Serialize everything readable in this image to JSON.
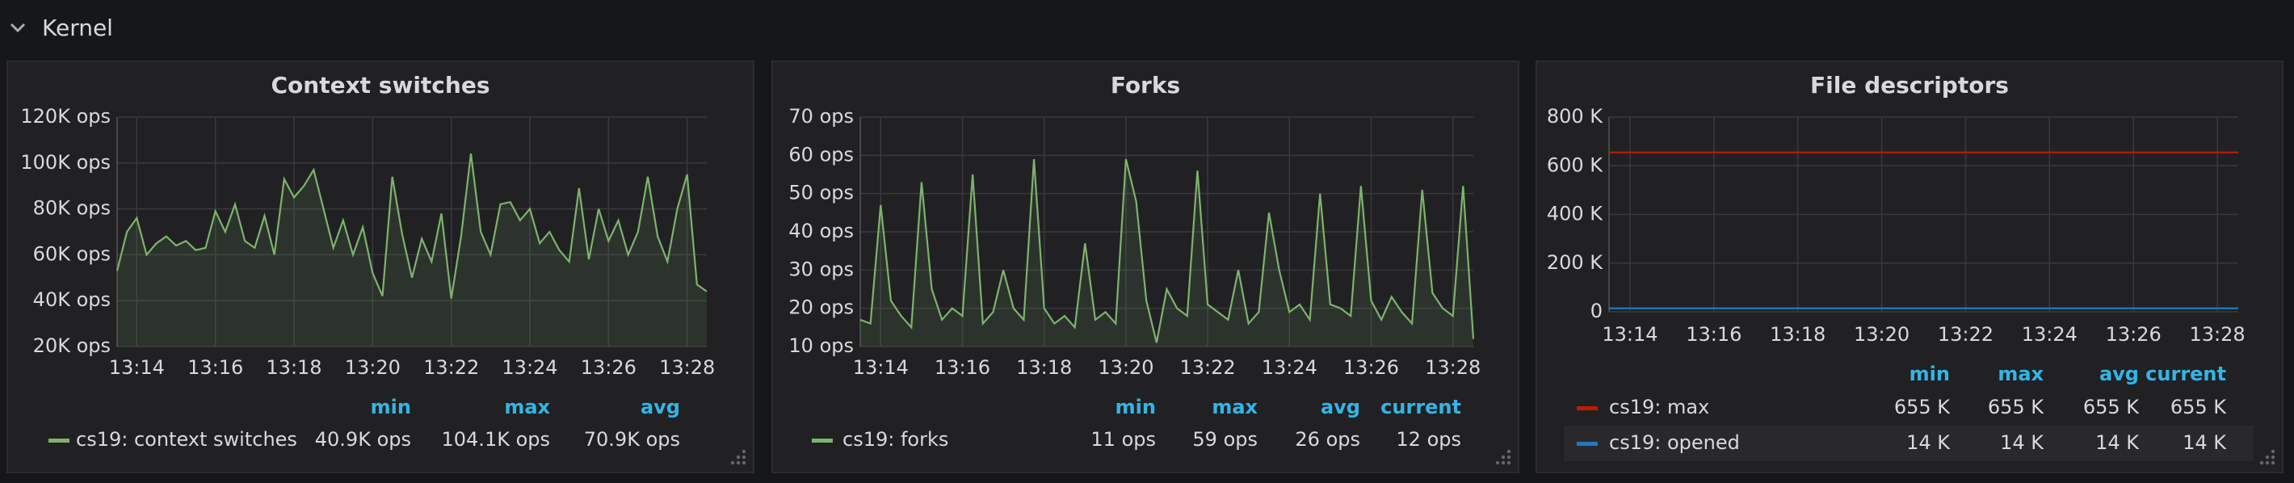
{
  "row": {
    "title": "Kernel"
  },
  "chart_data": [
    {
      "type": "line",
      "title": "Context switches",
      "fill": true,
      "grid": true,
      "categories": [
        null,
        null,
        "13:14",
        null,
        null,
        null,
        null,
        null,
        null,
        null,
        "13:16",
        null,
        null,
        null,
        null,
        null,
        null,
        null,
        "13:18",
        null,
        null,
        null,
        null,
        null,
        null,
        null,
        "13:20",
        null,
        null,
        null,
        null,
        null,
        null,
        null,
        "13:22",
        null,
        null,
        null,
        null,
        null,
        null,
        null,
        "13:24",
        null,
        null,
        null,
        null,
        null,
        null,
        null,
        "13:26",
        null,
        null,
        null,
        null,
        null,
        null,
        null,
        "13:28",
        null,
        null
      ],
      "ylim": [
        20000,
        120000
      ],
      "yticks": [
        {
          "value": 20000,
          "label": "20K ops"
        },
        {
          "value": 40000,
          "label": "40K ops"
        },
        {
          "value": 60000,
          "label": "60K ops"
        },
        {
          "value": 80000,
          "label": "80K ops"
        },
        {
          "value": 100000,
          "label": "100K ops"
        },
        {
          "value": 120000,
          "label": "120K ops"
        }
      ],
      "legend_columns": [
        "min",
        "max",
        "avg"
      ],
      "series": [
        {
          "name": "cs19: context switches",
          "color": "#7eb26d",
          "legend_values": [
            "40.9K ops",
            "104.1K ops",
            "70.9K ops"
          ],
          "values": [
            53000,
            70000,
            76000,
            60000,
            65000,
            68000,
            64000,
            66000,
            62000,
            63000,
            79000,
            70000,
            82000,
            66000,
            63000,
            77000,
            60000,
            93000,
            85000,
            90000,
            97000,
            80000,
            63000,
            75000,
            60000,
            72000,
            52000,
            42000,
            94000,
            69000,
            50000,
            67000,
            57000,
            78000,
            40900,
            68000,
            104100,
            70000,
            60000,
            82000,
            83000,
            75000,
            80000,
            65000,
            70000,
            62000,
            57000,
            89000,
            58000,
            80000,
            66000,
            75000,
            60000,
            70000,
            94000,
            68000,
            57000,
            80000,
            95000,
            47000,
            44000
          ]
        }
      ]
    },
    {
      "type": "line",
      "title": "Forks",
      "fill": true,
      "grid": true,
      "categories": [
        null,
        null,
        "13:14",
        null,
        null,
        null,
        null,
        null,
        null,
        null,
        "13:16",
        null,
        null,
        null,
        null,
        null,
        null,
        null,
        "13:18",
        null,
        null,
        null,
        null,
        null,
        null,
        null,
        "13:20",
        null,
        null,
        null,
        null,
        null,
        null,
        null,
        "13:22",
        null,
        null,
        null,
        null,
        null,
        null,
        null,
        "13:24",
        null,
        null,
        null,
        null,
        null,
        null,
        null,
        "13:26",
        null,
        null,
        null,
        null,
        null,
        null,
        null,
        "13:28",
        null,
        null
      ],
      "ylim": [
        10,
        70
      ],
      "yticks": [
        {
          "value": 10,
          "label": "10 ops"
        },
        {
          "value": 20,
          "label": "20 ops"
        },
        {
          "value": 30,
          "label": "30 ops"
        },
        {
          "value": 40,
          "label": "40 ops"
        },
        {
          "value": 50,
          "label": "50 ops"
        },
        {
          "value": 60,
          "label": "60 ops"
        },
        {
          "value": 70,
          "label": "70 ops"
        }
      ],
      "legend_columns": [
        "min",
        "max",
        "avg",
        "current"
      ],
      "series": [
        {
          "name": "cs19: forks",
          "color": "#7eb26d",
          "legend_values": [
            "11 ops",
            "59 ops",
            "26 ops",
            "12 ops"
          ],
          "values": [
            17,
            16,
            47,
            22,
            18,
            15,
            53,
            25,
            17,
            20,
            18,
            55,
            16,
            19,
            30,
            20,
            17,
            59,
            20,
            16,
            18,
            15,
            37,
            17,
            19,
            16,
            59,
            48,
            22,
            11,
            25,
            20,
            18,
            56,
            21,
            19,
            17,
            30,
            16,
            19,
            45,
            30,
            19,
            21,
            17,
            50,
            21,
            20,
            18,
            52,
            22,
            17,
            23,
            19,
            16,
            51,
            24,
            20,
            18,
            52,
            12
          ]
        }
      ]
    },
    {
      "type": "line",
      "title": "File descriptors",
      "fill": false,
      "grid": true,
      "categories": [
        null,
        null,
        "13:14",
        null,
        null,
        null,
        null,
        null,
        null,
        null,
        "13:16",
        null,
        null,
        null,
        null,
        null,
        null,
        null,
        "13:18",
        null,
        null,
        null,
        null,
        null,
        null,
        null,
        "13:20",
        null,
        null,
        null,
        null,
        null,
        null,
        null,
        "13:22",
        null,
        null,
        null,
        null,
        null,
        null,
        null,
        "13:24",
        null,
        null,
        null,
        null,
        null,
        null,
        null,
        "13:26",
        null,
        null,
        null,
        null,
        null,
        null,
        null,
        "13:28",
        null,
        null
      ],
      "ylim": [
        0,
        800000
      ],
      "yticks": [
        0,
        {
          "value": 200000,
          "label": "200 K"
        },
        {
          "value": 400000,
          "label": "400 K"
        },
        {
          "value": 600000,
          "label": "600 K"
        },
        {
          "value": 800000,
          "label": "800 K"
        }
      ],
      "legend_columns": [
        "min",
        "max",
        "avg",
        "current"
      ],
      "series": [
        {
          "name": "cs19: max",
          "color": "#bf1b00",
          "legend_values": [
            "655 K",
            "655 K",
            "655 K",
            "655 K"
          ],
          "values": [
            655000,
            655000,
            655000,
            655000,
            655000,
            655000,
            655000,
            655000,
            655000,
            655000,
            655000,
            655000,
            655000,
            655000,
            655000,
            655000,
            655000,
            655000,
            655000,
            655000,
            655000,
            655000,
            655000,
            655000,
            655000,
            655000,
            655000,
            655000,
            655000,
            655000,
            655000,
            655000,
            655000,
            655000,
            655000,
            655000,
            655000,
            655000,
            655000,
            655000,
            655000,
            655000,
            655000,
            655000,
            655000,
            655000,
            655000,
            655000,
            655000,
            655000,
            655000,
            655000,
            655000,
            655000,
            655000,
            655000,
            655000,
            655000,
            655000,
            655000,
            655000
          ]
        },
        {
          "name": "cs19: opened",
          "color": "#1f78c1",
          "legend_values": [
            "14 K",
            "14 K",
            "14 K",
            "14 K"
          ],
          "values": [
            14000,
            14000,
            14000,
            14000,
            14000,
            14000,
            14000,
            14000,
            14000,
            14000,
            14000,
            14000,
            14000,
            14000,
            14000,
            14000,
            14000,
            14000,
            14000,
            14000,
            14000,
            14000,
            14000,
            14000,
            14000,
            14000,
            14000,
            14000,
            14000,
            14000,
            14000,
            14000,
            14000,
            14000,
            14000,
            14000,
            14000,
            14000,
            14000,
            14000,
            14000,
            14000,
            14000,
            14000,
            14000,
            14000,
            14000,
            14000,
            14000,
            14000,
            14000,
            14000,
            14000,
            14000,
            14000,
            14000,
            14000,
            14000,
            14000,
            14000,
            14000
          ]
        }
      ]
    }
  ]
}
